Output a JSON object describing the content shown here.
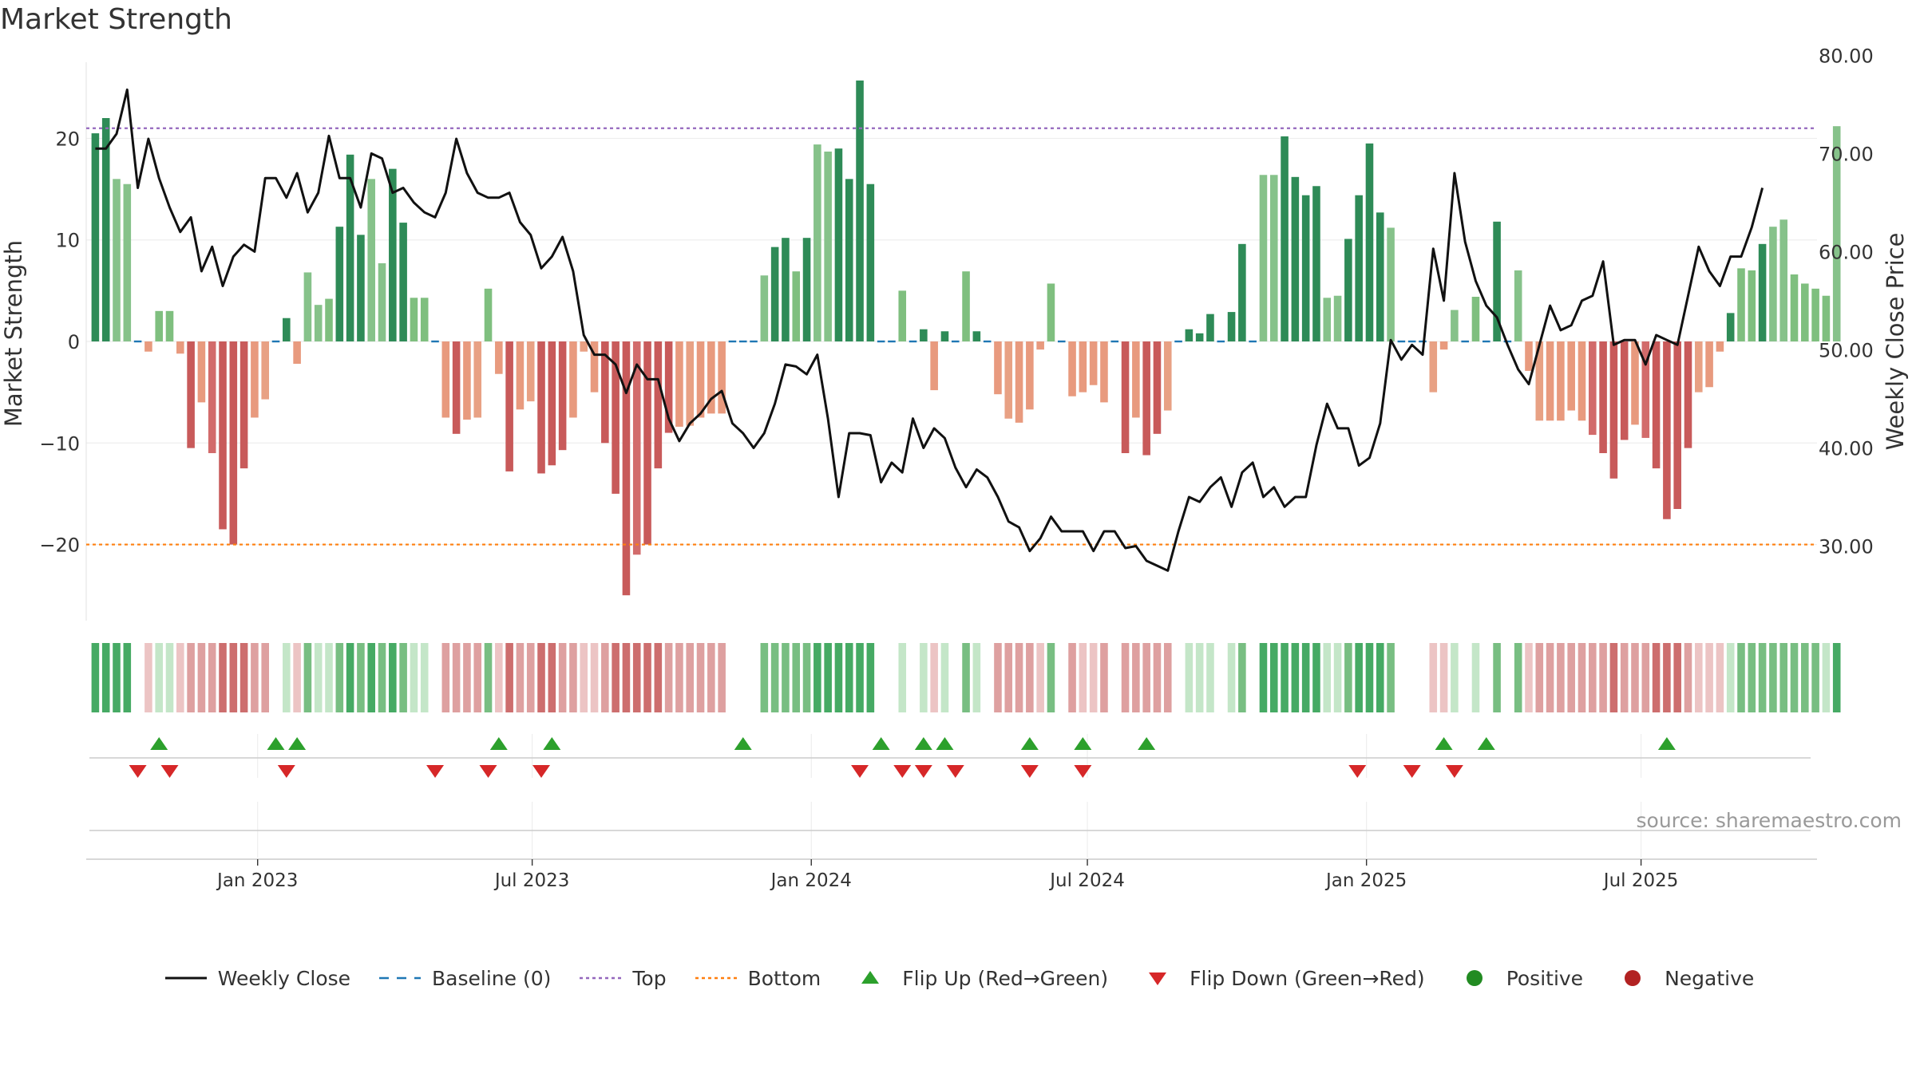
{
  "title": "Market Strength",
  "source_text": "source: sharemaestro.com",
  "colors": {
    "line": "#111111",
    "baseline": "#1f77b4",
    "top": "#9467bd",
    "bottom": "#ff7f0e",
    "flip_up": "#2ca02c",
    "flip_down": "#d62728",
    "positive": "#228b22",
    "negative": "#b22222"
  },
  "legend": [
    {
      "label": "Weekly Close",
      "kind": "line"
    },
    {
      "label": "Baseline (0)",
      "kind": "baseline"
    },
    {
      "label": "Top",
      "kind": "top"
    },
    {
      "label": "Bottom",
      "kind": "bottom"
    },
    {
      "label": "Flip Up (Red→Green)",
      "kind": "flip_up"
    },
    {
      "label": "Flip Down (Green→Red)",
      "kind": "flip_down"
    },
    {
      "label": "Positive",
      "kind": "positive"
    },
    {
      "label": "Negative",
      "kind": "negative"
    }
  ],
  "chart_data": {
    "type": "bar",
    "ylabel": "Market Strength",
    "y2label": "Weekly Close Price",
    "ylim": [
      -27.5,
      27.5
    ],
    "yticks": [
      -20,
      -10,
      0,
      10,
      20
    ],
    "y2lim": [
      22.4,
      79.3
    ],
    "y2ticks": [
      "30.00",
      "40.00",
      "50.00",
      "60.00",
      "70.00",
      "80.00"
    ],
    "xlim": [
      "2022-09-10",
      "2025-10-25"
    ],
    "xticks": [
      "Jan 2023",
      "Jul 2023",
      "Jan 2024",
      "Jul 2024",
      "Jan 2025",
      "Jul 2025"
    ],
    "xtick_dates": [
      "2023-01-01",
      "2023-07-01",
      "2024-01-01",
      "2024-07-01",
      "2025-01-01",
      "2025-07-01"
    ],
    "top_level": 21,
    "bottom_level": -20,
    "baseline": 0,
    "start_date": "2022-09-16",
    "interval_days": 7,
    "values": [
      20.5,
      22.0,
      16.0,
      15.5,
      0.0,
      -1.0,
      3.0,
      3.0,
      -1.2,
      -10.5,
      -6.0,
      -11.0,
      -18.5,
      -20.0,
      -12.5,
      -7.5,
      -5.7,
      0.0,
      2.3,
      -2.2,
      6.8,
      3.6,
      4.2,
      11.3,
      18.4,
      10.5,
      16.0,
      7.7,
      17.0,
      11.7,
      4.3,
      4.3,
      0.0,
      -7.5,
      -9.1,
      -7.7,
      -7.5,
      5.2,
      -3.2,
      -12.8,
      -6.7,
      -5.9,
      -13.0,
      -12.2,
      -10.7,
      -7.5,
      -1.0,
      -5.0,
      -10.0,
      -15.0,
      -25.0,
      -21.0,
      -20.0,
      -12.5,
      -9.0,
      -8.4,
      -8.3,
      -7.5,
      -7.1,
      -7.1,
      -0.3,
      0.0,
      0.5,
      6.5,
      9.3,
      10.2,
      6.9,
      10.2,
      19.4,
      18.7,
      19.0,
      16.0,
      25.7,
      15.5,
      -0.5,
      0.0,
      5.0,
      0.0,
      1.2,
      -4.8,
      1.0,
      0.0,
      6.9,
      1.0,
      0.0,
      -5.2,
      -7.6,
      -8.0,
      -6.7,
      -0.8,
      5.7,
      0.0,
      -5.4,
      -5.0,
      -4.3,
      -6.0,
      0.0,
      -11.0,
      -7.5,
      -11.2,
      -9.1,
      -6.8,
      0.0,
      1.2,
      0.8,
      2.7,
      0.0,
      2.9,
      9.6,
      0.0,
      16.4,
      16.4,
      20.2,
      16.2,
      14.4,
      15.3,
      4.3,
      4.5,
      10.1,
      14.4,
      19.5,
      12.7,
      11.2,
      0.0,
      0.0,
      0.0,
      -5.0,
      -0.8,
      3.1,
      0.0,
      4.4,
      0.0,
      11.8,
      0.4,
      7.0,
      -2.9,
      -7.8,
      -7.8,
      -7.8,
      -6.8,
      -7.8,
      -9.2,
      -11.0,
      -13.5,
      -9.7,
      -8.2,
      -9.5,
      -12.5,
      -17.5,
      -16.5,
      -10.5,
      -5.0,
      -4.5,
      -1.0,
      2.8,
      7.2,
      7.0,
      9.6,
      11.3,
      12.0,
      6.6,
      5.7,
      5.2,
      4.5,
      21.2
    ],
    "line_values": [
      70.5,
      70.5,
      72.0,
      76.5,
      66.5,
      71.5,
      67.5,
      64.5,
      62.0,
      63.5,
      58.0,
      60.5,
      56.5,
      59.5,
      60.7,
      60.0,
      67.5,
      67.5,
      65.5,
      68.0,
      64.0,
      66.0,
      71.8,
      67.5,
      67.5,
      64.5,
      70.0,
      69.5,
      66.0,
      66.5,
      65.0,
      64.0,
      63.5,
      66.0,
      71.5,
      68.0,
      66.0,
      65.5,
      65.5,
      66.0,
      63.0,
      61.7,
      58.3,
      59.5,
      61.5,
      58.0,
      51.5,
      49.5,
      49.5,
      48.5,
      45.6,
      48.5,
      47.0,
      47.0,
      43.0,
      40.7,
      42.5,
      43.5,
      45.0,
      45.8,
      42.5,
      41.5,
      40.0,
      41.5,
      44.5,
      48.5,
      48.3,
      47.5,
      49.5,
      43.0,
      35.0,
      41.5,
      41.5,
      41.3,
      36.5,
      38.5,
      37.5,
      43.0,
      40.0,
      42.0,
      41.0,
      38.0,
      36.0,
      37.8,
      37.0,
      35.0,
      32.5,
      31.9,
      29.5,
      30.8,
      33.0,
      31.5,
      31.5,
      31.5,
      29.5,
      31.5,
      31.5,
      29.8,
      30.0,
      28.5,
      28.0,
      27.5,
      31.5,
      35.0,
      34.5,
      36.0,
      37.0,
      34.0,
      37.5,
      38.5,
      35.0,
      36.0,
      34.0,
      35.0,
      35.0,
      40.3,
      44.5,
      42.0,
      42.0,
      38.2,
      39.0,
      42.5,
      51.0,
      49.0,
      50.5,
      49.5,
      60.3,
      55.0,
      68.0,
      61.0,
      57.0,
      54.5,
      53.3,
      50.5,
      48.0,
      46.5,
      50.5,
      54.5,
      52.0,
      52.5,
      55.0,
      55.5,
      59.0,
      50.5,
      51.0,
      51.0,
      48.5,
      51.5,
      51.0,
      50.5,
      55.5,
      60.5,
      58.0,
      56.5,
      59.5,
      59.5,
      62.5,
      66.5
    ],
    "flip_up_dates": [
      "2022-10-28",
      "2023-01-13",
      "2023-01-27",
      "2023-06-09",
      "2023-07-14",
      "2023-11-17",
      "2024-02-16",
      "2024-03-15",
      "2024-03-29",
      "2024-05-24",
      "2024-06-28",
      "2024-08-09",
      "2025-02-21",
      "2025-03-21",
      "2025-07-18"
    ],
    "flip_down_dates": [
      "2022-10-14",
      "2022-11-04",
      "2023-01-20",
      "2023-04-28",
      "2023-06-02",
      "2023-07-07",
      "2024-02-02",
      "2024-03-01",
      "2024-03-15",
      "2024-04-05",
      "2024-05-24",
      "2024-06-28",
      "2024-12-26",
      "2025-01-31",
      "2025-02-28"
    ]
  }
}
